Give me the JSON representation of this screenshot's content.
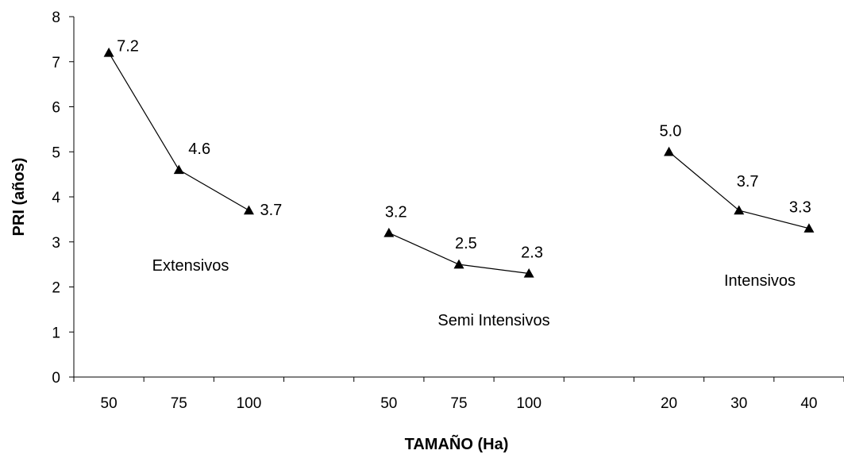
{
  "chart_data": {
    "type": "line",
    "xlabel": "TAMAÑO (Ha)",
    "ylabel": "PRI (años)",
    "ylim": [
      0,
      8
    ],
    "yticks": [
      "0",
      "1",
      "2",
      "3",
      "4",
      "5",
      "6",
      "7",
      "8"
    ],
    "grid": false,
    "groups": [
      {
        "label": "Extensivos",
        "categories": [
          "50",
          "75",
          "100"
        ],
        "values": [
          7.2,
          4.6,
          3.7
        ],
        "value_labels": [
          "7.2",
          "4.6",
          "3.7"
        ]
      },
      {
        "label": "Semi Intensivos",
        "categories": [
          "50",
          "75",
          "100"
        ],
        "values": [
          3.2,
          2.5,
          2.3
        ],
        "value_labels": [
          "3.2",
          "2.5",
          "2.3"
        ]
      },
      {
        "label": "Intensivos",
        "categories": [
          "20",
          "30",
          "40"
        ],
        "values": [
          5.0,
          3.7,
          3.3
        ],
        "value_labels": [
          "5.0",
          "3.7",
          "3.3"
        ]
      }
    ]
  }
}
